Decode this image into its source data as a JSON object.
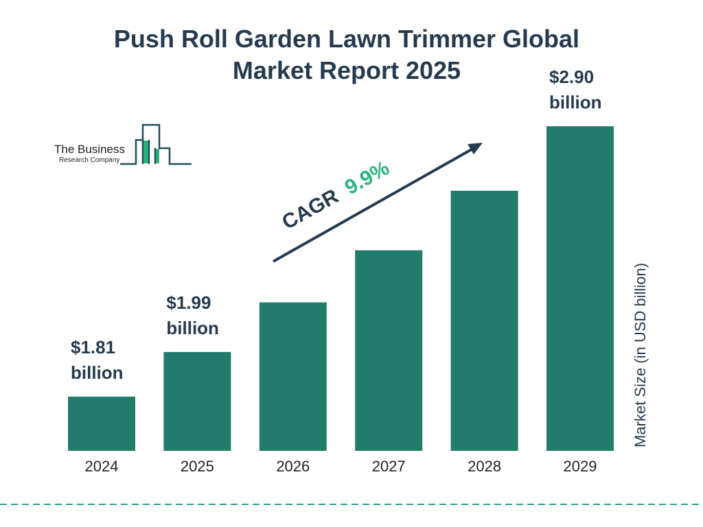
{
  "chart_data": {
    "type": "bar",
    "title": "Push Roll Garden Lawn Trimmer Global Market Report 2025",
    "title_lines": [
      "Push Roll Garden Lawn Trimmer Global",
      "Market Report 2025"
    ],
    "categories": [
      "2024",
      "2025",
      "2026",
      "2027",
      "2028",
      "2029"
    ],
    "values": [
      1.81,
      1.99,
      2.19,
      2.4,
      2.64,
      2.9
    ],
    "data_labels": [
      {
        "index": 0,
        "line1": "$1.81",
        "line2": "billion"
      },
      {
        "index": 1,
        "line1": "$1.99",
        "line2": "billion"
      },
      {
        "index": 5,
        "line1": "$2.90",
        "line2": "billion"
      }
    ],
    "ylabel": "Market Size (in USD billion)",
    "xlabel": "",
    "grid": false,
    "annotation": {
      "label": "CAGR",
      "value": "9.9%"
    },
    "colors": {
      "bar": "#217c6c",
      "text": "#253a4f",
      "cagr": "#2bb37e",
      "dashed_line": "#2a9d8f"
    }
  },
  "logo": {
    "line1": "The Business",
    "line2": "Research Company"
  }
}
